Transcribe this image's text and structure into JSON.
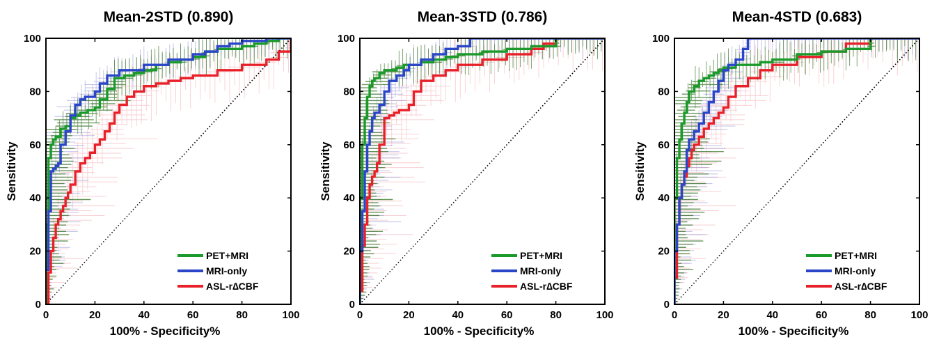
{
  "chart_data": [
    {
      "type": "line",
      "title": "Mean-2STD (0.890)",
      "xlabel": "100% - Specificity%",
      "ylabel": "Sensitivity",
      "xlim": [
        0,
        100
      ],
      "ylim": [
        0,
        100
      ],
      "xticks": [
        "0",
        "20",
        "40",
        "60",
        "80",
        "100"
      ],
      "yticks": [
        "0",
        "20",
        "40",
        "60",
        "80",
        "100"
      ],
      "grid": false,
      "legend_position": "bottom-right",
      "series": [
        {
          "name": "PET+MRI",
          "color": "#1a9a2a",
          "band_color": "#3d7a2a",
          "x": [
            0,
            0,
            1,
            1,
            2,
            3,
            4,
            6,
            8,
            10,
            12,
            14,
            17,
            20,
            22,
            25,
            28,
            32,
            36,
            40,
            45,
            50,
            55,
            60,
            65,
            70,
            80,
            85,
            90,
            95,
            100
          ],
          "y": [
            0,
            30,
            45,
            55,
            60,
            62,
            63,
            66,
            67,
            70,
            71,
            72,
            73,
            74,
            77,
            81,
            85,
            86,
            87,
            88,
            90,
            91,
            92,
            93,
            95,
            96,
            97,
            98,
            99,
            100,
            100
          ]
        },
        {
          "name": "MRI-only",
          "color": "#2a45c8",
          "band_color": "#8080d0",
          "x": [
            0,
            1,
            2,
            3,
            4,
            5,
            6,
            8,
            10,
            12,
            14,
            16,
            18,
            20,
            22,
            25,
            30,
            35,
            40,
            45,
            50,
            55,
            60,
            65,
            70,
            75,
            80,
            85,
            90,
            95,
            100
          ],
          "y": [
            13,
            35,
            50,
            51,
            52,
            53,
            60,
            65,
            71,
            75,
            77,
            78,
            78,
            80,
            83,
            86,
            88,
            88,
            90,
            90,
            92,
            92,
            94,
            95,
            97,
            98,
            99,
            99,
            100,
            100,
            100
          ]
        },
        {
          "name": "ASL-r∆CBF",
          "color": "#e8202a",
          "band_color": "#f2a0a8",
          "x": [
            0,
            1,
            2,
            3,
            4,
            5,
            6,
            7,
            8,
            9,
            10,
            12,
            14,
            16,
            18,
            20,
            22,
            24,
            26,
            28,
            30,
            33,
            36,
            40,
            45,
            50,
            55,
            60,
            70,
            80,
            90,
            95,
            100
          ],
          "y": [
            0,
            12,
            20,
            25,
            30,
            32,
            35,
            37,
            40,
            42,
            45,
            50,
            53,
            55,
            57,
            60,
            62,
            65,
            68,
            72,
            75,
            78,
            80,
            82,
            83,
            84,
            85,
            86,
            88,
            90,
            92,
            95,
            100
          ]
        }
      ],
      "reference_line": {
        "x": [
          0,
          100
        ],
        "y": [
          0,
          100
        ]
      }
    },
    {
      "type": "line",
      "title": "Mean-3STD (0.786)",
      "xlabel": "100% - Specificity%",
      "ylabel": "Sensitivity",
      "xlim": [
        0,
        100
      ],
      "ylim": [
        0,
        100
      ],
      "xticks": [
        "0",
        "20",
        "40",
        "60",
        "80",
        "100"
      ],
      "yticks": [
        "0",
        "20",
        "40",
        "60",
        "80",
        "100"
      ],
      "grid": false,
      "legend_position": "bottom-right",
      "series": [
        {
          "name": "PET+MRI",
          "color": "#1a9a2a",
          "band_color": "#3d7a2a",
          "x": [
            0,
            0,
            1,
            2,
            3,
            4,
            5,
            6,
            8,
            10,
            12,
            15,
            18,
            20,
            25,
            30,
            35,
            40,
            50,
            60,
            70,
            80,
            100
          ],
          "y": [
            0,
            40,
            60,
            70,
            78,
            82,
            84,
            85,
            87,
            88,
            88,
            89,
            90,
            90,
            91,
            92,
            93,
            94,
            95,
            96,
            97,
            100,
            100
          ]
        },
        {
          "name": "MRI-only",
          "color": "#2a45c8",
          "band_color": "#8080d0",
          "x": [
            0,
            0,
            1,
            2,
            3,
            4,
            5,
            6,
            8,
            10,
            12,
            15,
            18,
            20,
            25,
            30,
            35,
            40,
            45,
            50,
            60,
            100
          ],
          "y": [
            0,
            20,
            35,
            50,
            60,
            65,
            70,
            72,
            75,
            80,
            84,
            86,
            88,
            90,
            92,
            94,
            96,
            97,
            100,
            100,
            100,
            100
          ]
        },
        {
          "name": "ASL-r∆CBF",
          "color": "#e8202a",
          "band_color": "#f2a0a8",
          "x": [
            0,
            1,
            2,
            3,
            4,
            5,
            6,
            7,
            8,
            10,
            12,
            14,
            16,
            18,
            20,
            22,
            25,
            30,
            35,
            40,
            50,
            60,
            70,
            75,
            80,
            90,
            100
          ],
          "y": [
            5,
            22,
            30,
            40,
            45,
            48,
            50,
            53,
            60,
            70,
            71,
            72,
            73,
            73,
            75,
            80,
            84,
            86,
            88,
            90,
            92,
            94,
            96,
            98,
            100,
            100,
            100
          ]
        }
      ],
      "reference_line": {
        "x": [
          0,
          100
        ],
        "y": [
          0,
          100
        ]
      }
    },
    {
      "type": "line",
      "title": "Mean-4STD (0.683)",
      "xlabel": "100% - Specificity%",
      "ylabel": "Sensitivity",
      "xlim": [
        0,
        100
      ],
      "ylim": [
        0,
        100
      ],
      "xticks": [
        "0",
        "20",
        "40",
        "60",
        "80",
        "100"
      ],
      "yticks": [
        "0",
        "20",
        "40",
        "60",
        "80",
        "100"
      ],
      "grid": false,
      "legend_position": "bottom-right",
      "series": [
        {
          "name": "PET+MRI",
          "color": "#1a9a2a",
          "band_color": "#3d7a2a",
          "x": [
            0,
            0,
            1,
            2,
            3,
            4,
            5,
            6,
            8,
            10,
            12,
            14,
            16,
            18,
            20,
            25,
            30,
            35,
            40,
            50,
            60,
            70,
            80,
            100
          ],
          "y": [
            0,
            40,
            55,
            62,
            68,
            72,
            76,
            80,
            82,
            84,
            85,
            86,
            87,
            88,
            89,
            90,
            90,
            91,
            92,
            94,
            95,
            96,
            100,
            100
          ]
        },
        {
          "name": "MRI-only",
          "color": "#2a45c8",
          "band_color": "#8080d0",
          "x": [
            0,
            0,
            1,
            2,
            3,
            4,
            5,
            6,
            8,
            10,
            12,
            14,
            16,
            18,
            20,
            22,
            25,
            28,
            30,
            35,
            40,
            100
          ],
          "y": [
            0,
            20,
            30,
            40,
            45,
            50,
            58,
            62,
            65,
            68,
            72,
            76,
            80,
            84,
            88,
            90,
            92,
            96,
            100,
            100,
            100,
            100
          ]
        },
        {
          "name": "ASL-r∆CBF",
          "color": "#e8202a",
          "band_color": "#f2a0a8",
          "x": [
            0,
            1,
            2,
            3,
            4,
            5,
            6,
            7,
            8,
            10,
            12,
            14,
            16,
            18,
            20,
            22,
            25,
            30,
            35,
            40,
            50,
            60,
            70,
            80,
            100
          ],
          "y": [
            10,
            30,
            40,
            45,
            48,
            52,
            55,
            58,
            60,
            63,
            66,
            68,
            70,
            72,
            74,
            78,
            82,
            85,
            88,
            90,
            93,
            95,
            98,
            100,
            100
          ]
        }
      ],
      "reference_line": {
        "x": [
          0,
          100
        ],
        "y": [
          0,
          100
        ]
      }
    }
  ]
}
